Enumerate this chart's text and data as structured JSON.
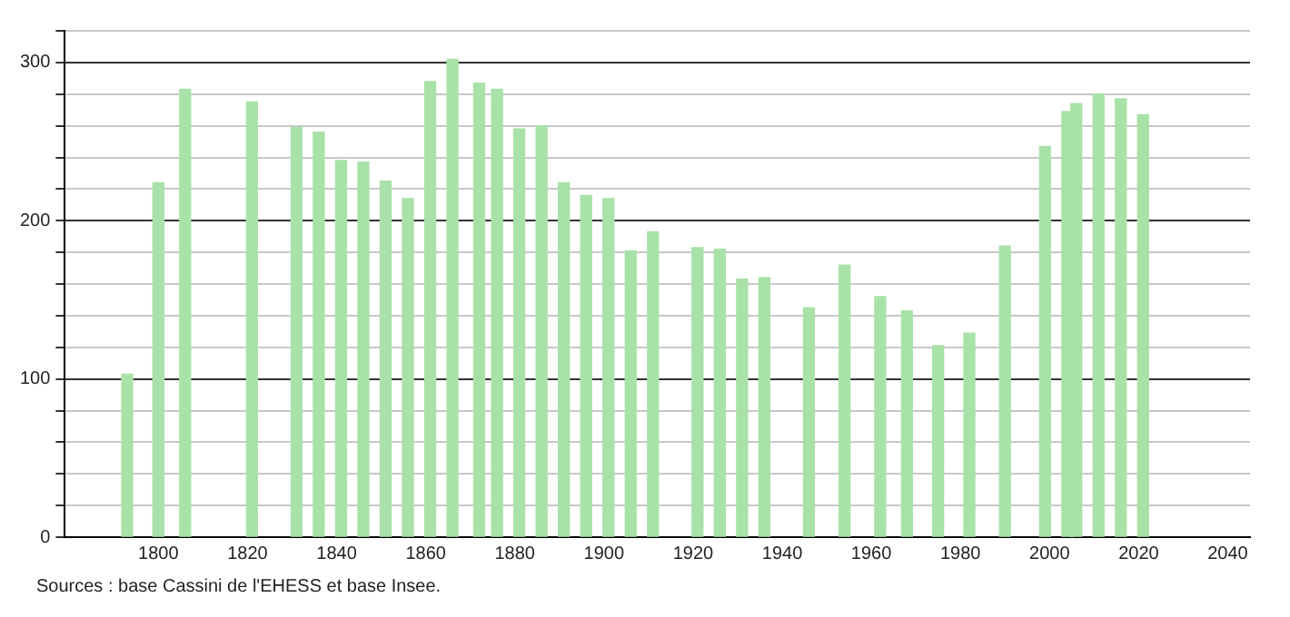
{
  "chart_data": {
    "type": "bar",
    "x": [
      1793,
      1800,
      1806,
      1821,
      1831,
      1836,
      1841,
      1846,
      1851,
      1856,
      1861,
      1866,
      1872,
      1876,
      1881,
      1886,
      1891,
      1896,
      1901,
      1906,
      1911,
      1921,
      1926,
      1931,
      1936,
      1946,
      1954,
      1962,
      1968,
      1975,
      1982,
      1990,
      1999,
      2004,
      2006,
      2011,
      2016,
      2021
    ],
    "values": [
      103,
      224,
      283,
      275,
      259,
      256,
      238,
      237,
      225,
      214,
      288,
      302,
      287,
      283,
      258,
      260,
      224,
      216,
      214,
      181,
      193,
      183,
      182,
      163,
      164,
      145,
      172,
      152,
      143,
      121,
      129,
      184,
      247,
      269,
      274,
      280,
      277,
      267
    ],
    "color": "#a8e2a8",
    "xlim": [
      1779,
      2045
    ],
    "xticks": [
      1800,
      1820,
      1840,
      1860,
      1880,
      1900,
      1920,
      1940,
      1960,
      1980,
      2000,
      2020,
      2040
    ],
    "ylim": [
      0,
      320
    ],
    "yticks": [
      0,
      {
        "value": 20,
        "label": null
      },
      {
        "value": 40,
        "label": null
      },
      {
        "value": 60,
        "label": null
      },
      {
        "value": 80,
        "label": null
      },
      100,
      {
        "value": 120,
        "label": null
      },
      {
        "value": 140,
        "label": null
      },
      {
        "value": 160,
        "label": null
      },
      {
        "value": 180,
        "label": null
      },
      200,
      {
        "value": 220,
        "label": null
      },
      {
        "value": 240,
        "label": null
      },
      {
        "value": 260,
        "label": null
      },
      {
        "value": 280,
        "label": null
      },
      300,
      {
        "value": 320,
        "label": null
      }
    ],
    "grid": "y",
    "annotations": [
      "Sources : base Cassini de l'EHESS et base Insee."
    ]
  }
}
